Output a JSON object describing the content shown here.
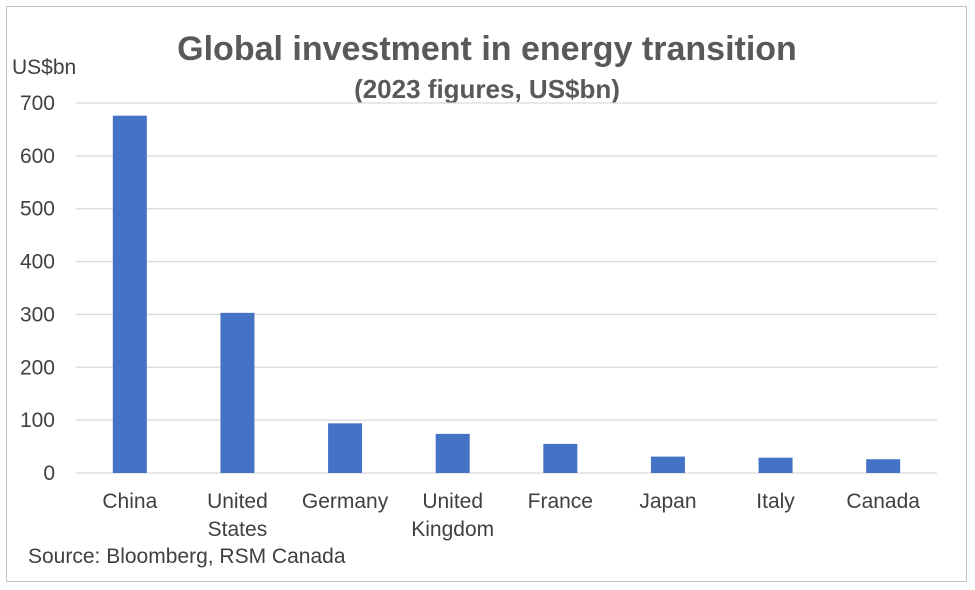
{
  "chart_data": {
    "type": "bar",
    "title": "Global investment in energy transition",
    "subtitle": "(2023 figures, US$bn)",
    "ylabel": "US$bn",
    "xlabel": "",
    "ylim": [
      0,
      700
    ],
    "yticks": [
      0,
      100,
      200,
      300,
      400,
      500,
      600,
      700
    ],
    "grid": true,
    "categories": [
      [
        "China"
      ],
      [
        "United",
        "States"
      ],
      [
        "Germany"
      ],
      [
        "United",
        "Kingdom"
      ],
      [
        "France"
      ],
      [
        "Japan"
      ],
      [
        "Italy"
      ],
      [
        "Canada"
      ]
    ],
    "values": [
      676,
      303,
      94,
      74,
      55,
      31,
      29,
      26
    ],
    "bar_color": "#4472c4",
    "grid_color": "#d9d9d9",
    "source": "Source: Bloomberg, RSM Canada"
  }
}
